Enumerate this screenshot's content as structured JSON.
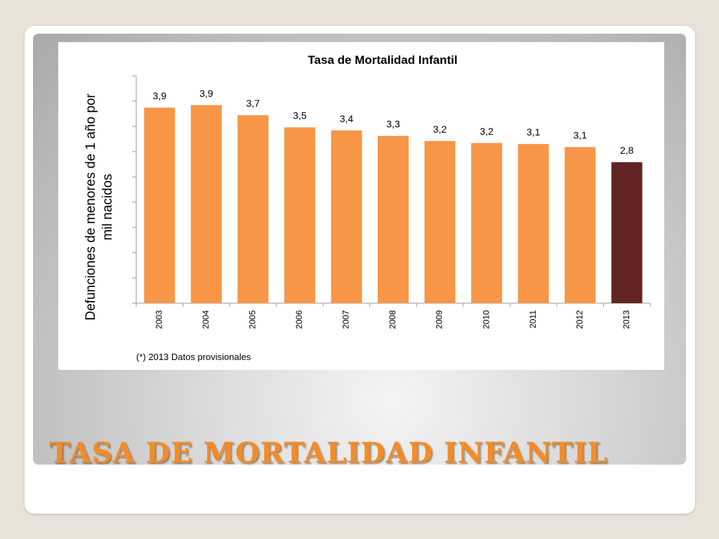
{
  "slide": {
    "heading": "TASA DE MORTALIDAD INFANTIL"
  },
  "chart_data": {
    "type": "bar",
    "title": "Tasa de Mortalidad Infantil",
    "ylabel": "Defunciones de menores de 1 año por mil nacidos",
    "ylabel_lines": [
      "Defunciones de menores de 1 año por",
      "mil nacidos"
    ],
    "xlabel": "",
    "footnote": "(*) 2013 Datos provisionales",
    "categories": [
      "2003",
      "2004",
      "2005",
      "2006",
      "2007",
      "2008",
      "2009",
      "2010",
      "2011",
      "2012",
      "2013"
    ],
    "values": [
      3.9,
      3.9,
      3.7,
      3.5,
      3.4,
      3.3,
      3.2,
      3.2,
      3.1,
      3.1,
      2.8
    ],
    "value_labels": [
      "3,9",
      "3,9",
      "3,7",
      "3,5",
      "3,4",
      "3,3",
      "3,2",
      "3,2",
      "3,1",
      "3,1",
      "2,8"
    ],
    "plot_values": [
      3.87,
      3.92,
      3.72,
      3.48,
      3.42,
      3.31,
      3.21,
      3.17,
      3.15,
      3.09,
      2.79
    ],
    "ylim": [
      0,
      4.5
    ],
    "grid": false,
    "colors": {
      "bar": "#f79646",
      "highlight": "#632523",
      "axis": "#9a9a9a"
    },
    "highlight_category": "2013"
  }
}
